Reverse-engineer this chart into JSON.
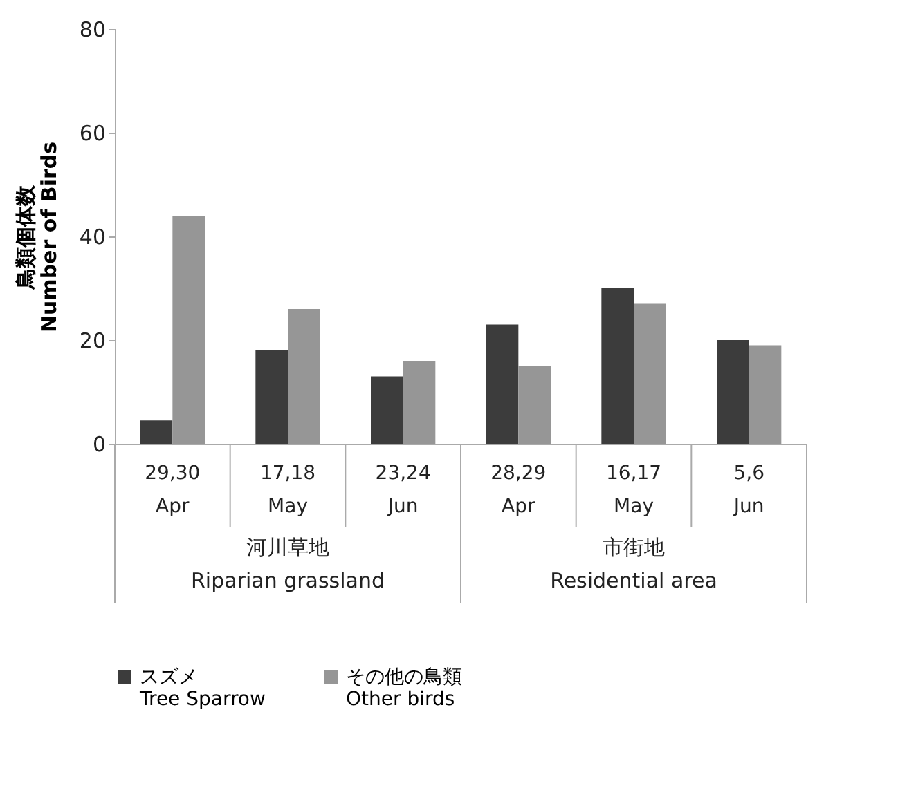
{
  "chart_data": {
    "type": "bar",
    "ylabel": "鳥類個体数\nNumber of Birds",
    "categories": [
      "29,30\nApr",
      "17,18\nMay",
      "23,24\nJun",
      "28,29\nApr",
      "16,17\nMay",
      "5,6\nJun"
    ],
    "series": [
      {
        "name": "スズメ\nTree Sparrow",
        "color": "#3c3c3c",
        "values": [
          4.5,
          18,
          13,
          23,
          30,
          20
        ]
      },
      {
        "name": "その他の鳥類\nOther birds",
        "color": "#969696",
        "values": [
          44,
          26,
          16,
          15,
          27,
          19
        ]
      }
    ],
    "annotations": [
      "河川草地\nRiparian grassland",
      "市街地\nResidential area"
    ],
    "ylim": [
      0,
      80
    ],
    "yticks": [
      0,
      20,
      40,
      60,
      80
    ],
    "grid": false,
    "legend": "bottom"
  }
}
